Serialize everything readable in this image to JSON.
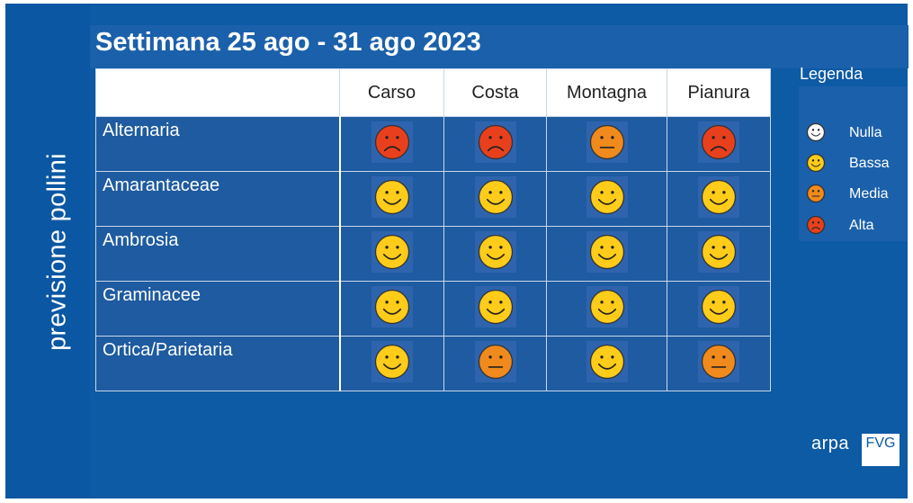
{
  "side_title": "previsione pollini",
  "title": "Settimana 25 ago - 31 ago 2023",
  "columns": [
    "Carso",
    "Costa",
    "Montagna",
    "Pianura"
  ],
  "rows": [
    {
      "name": "Alternaria",
      "levels": [
        "Alta",
        "Alta",
        "Media",
        "Alta"
      ]
    },
    {
      "name": "Amarantaceae",
      "levels": [
        "Bassa",
        "Bassa",
        "Bassa",
        "Bassa"
      ]
    },
    {
      "name": "Ambrosia",
      "levels": [
        "Bassa",
        "Bassa",
        "Bassa",
        "Bassa"
      ]
    },
    {
      "name": "Graminacee",
      "levels": [
        "Bassa",
        "Bassa",
        "Bassa",
        "Bassa"
      ]
    },
    {
      "name": "Ortica/Parietaria",
      "levels": [
        "Bassa",
        "Media",
        "Bassa",
        "Media"
      ]
    }
  ],
  "legend": {
    "title": "Legenda",
    "items": [
      {
        "label": "Nulla",
        "icon": "white-smiley-icon",
        "color": "#ffffff"
      },
      {
        "label": "Bassa",
        "icon": "yellow-smiley-icon",
        "color": "#ffcc1a"
      },
      {
        "label": "Media",
        "icon": "orange-neutral-face-icon",
        "color": "#f08a1c"
      },
      {
        "label": "Alta",
        "icon": "red-frown-face-icon",
        "color": "#e8401c"
      }
    ]
  },
  "logo": {
    "text": "arpa",
    "badge": "FVG"
  }
}
